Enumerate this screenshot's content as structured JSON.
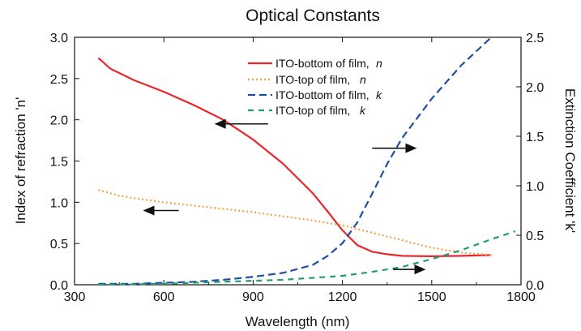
{
  "chart_data": {
    "type": "line",
    "title": "Optical Constants",
    "xlabel": "Wavelength (nm)",
    "ylabel": "Index of refraction 'n'",
    "y2label": "Extinction Coefficient 'k'",
    "xlim": [
      300,
      1800
    ],
    "ylim": [
      0,
      3.0
    ],
    "y2lim": [
      0,
      2.5
    ],
    "xticks": [
      "300",
      "600",
      "900",
      "1200",
      "1500",
      "1800"
    ],
    "yticks": [
      "0.0",
      "0.5",
      "1.0",
      "1.5",
      "2.0",
      "2.5",
      "3.0"
    ],
    "y2ticks": [
      "0.0",
      "0.5",
      "1.0",
      "1.5",
      "2.0",
      "2.5"
    ],
    "grid": false,
    "legend_position": "top-center",
    "series": [
      {
        "name": "ITO-bottom of film, n",
        "legend_text": "ITO-bottom of film,",
        "legend_symbol": "n",
        "axis": "left",
        "color": "#e8262b",
        "dash": "solid",
        "x": [
          380,
          420,
          500,
          600,
          700,
          800,
          900,
          1000,
          1100,
          1150,
          1200,
          1250,
          1300,
          1350,
          1400,
          1500,
          1600,
          1700
        ],
        "y": [
          2.75,
          2.62,
          2.48,
          2.34,
          2.18,
          2.0,
          1.76,
          1.47,
          1.11,
          0.89,
          0.66,
          0.48,
          0.4,
          0.37,
          0.35,
          0.345,
          0.35,
          0.36
        ]
      },
      {
        "name": "ITO-top of film, n",
        "legend_text": "ITO-top of film,",
        "legend_symbol": "n",
        "axis": "left",
        "color": "#f5a142",
        "dash": "dotted",
        "x": [
          380,
          450,
          500,
          600,
          700,
          800,
          900,
          1000,
          1100,
          1200,
          1300,
          1400,
          1500,
          1600,
          1700
        ],
        "y": [
          1.15,
          1.08,
          1.05,
          1.0,
          0.96,
          0.92,
          0.88,
          0.83,
          0.78,
          0.72,
          0.63,
          0.54,
          0.45,
          0.39,
          0.36
        ]
      },
      {
        "name": "ITO-bottom of film, k",
        "legend_text": "ITO-bottom of film,",
        "legend_symbol": "k",
        "axis": "right",
        "color": "#1f4fa3",
        "dash": "dashed",
        "x": [
          380,
          500,
          600,
          700,
          800,
          900,
          1000,
          1100,
          1150,
          1200,
          1250,
          1300,
          1350,
          1400,
          1500,
          1600,
          1700
        ],
        "y": [
          0.01,
          0.01,
          0.02,
          0.03,
          0.05,
          0.08,
          0.12,
          0.2,
          0.29,
          0.42,
          0.63,
          0.92,
          1.22,
          1.48,
          1.88,
          2.22,
          2.52
        ]
      },
      {
        "name": "ITO-top of film, k",
        "legend_text": "ITO-top of film,",
        "legend_symbol": "k",
        "axis": "right",
        "color": "#1f9e6e",
        "dash": "dashed",
        "x": [
          380,
          600,
          800,
          900,
          1000,
          1100,
          1200,
          1300,
          1400,
          1500,
          1600,
          1700,
          1780
        ],
        "y": [
          0.0,
          0.01,
          0.03,
          0.04,
          0.05,
          0.07,
          0.09,
          0.13,
          0.18,
          0.26,
          0.35,
          0.46,
          0.54
        ]
      }
    ],
    "annotations": [
      {
        "type": "arrow",
        "direction": "left",
        "x_from": 950,
        "x_to": 770,
        "y": 1.95,
        "axis": "left"
      },
      {
        "type": "arrow",
        "direction": "left",
        "x_from": 650,
        "x_to": 530,
        "y": 0.9,
        "axis": "left"
      },
      {
        "type": "arrow",
        "direction": "right",
        "x_from": 1300,
        "x_to": 1450,
        "y": 1.38,
        "axis": "right"
      },
      {
        "type": "arrow",
        "direction": "right",
        "x_from": 1370,
        "x_to": 1480,
        "y": 0.155,
        "axis": "right"
      }
    ]
  }
}
